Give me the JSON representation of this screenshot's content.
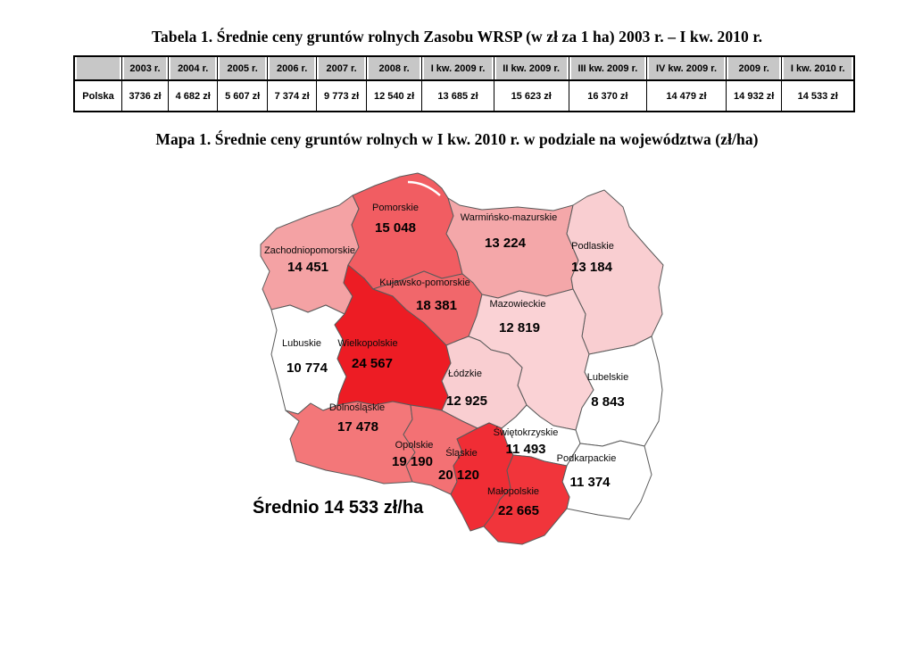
{
  "page_background": "#ffffff",
  "table_section": {
    "title": "Tabela 1. Średnie ceny gruntów rolnych Zasobu WRSP (w zł za 1 ha) 2003 r. – I kw. 2010 r.",
    "table": {
      "corner_label": "",
      "row_header": "Polska",
      "header_bg": "#c7c7c7",
      "columns": [
        "2003 r.",
        "2004 r.",
        "2005 r.",
        "2006 r.",
        "2007 r.",
        "2008 r.",
        "I kw. 2009 r.",
        "II kw. 2009 r.",
        "III kw. 2009 r.",
        "IV kw. 2009 r.",
        "2009 r.",
        "I kw. 2010 r."
      ],
      "values": [
        "3736 zł",
        "4 682 zł",
        "5 607 zł",
        "7 374 zł",
        "9 773 zł",
        "12 540 zł",
        "13 685 zł",
        "15 623 zł",
        "16 370 zł",
        "14 479 zł",
        "14 932 zł",
        "14 533 zł"
      ]
    }
  },
  "map_section": {
    "title": "Mapa 1. Średnie ceny gruntów rolnych w I kw. 2010 r. w podziale na województwa (zł/ha)",
    "average_label": "Średnio 14 533 zł/ha",
    "border_color": "#5a5a5a",
    "regions": [
      {
        "id": "zachodniopomorskie",
        "name": "Zachodniopomorskie",
        "value": "14 451",
        "color": "#f4a2a4"
      },
      {
        "id": "pomorskie",
        "name": "Pomorskie",
        "value": "15 048",
        "color": "#f15d62"
      },
      {
        "id": "warminsko",
        "name": "Warmińsko-mazurskie",
        "value": "13 224",
        "color": "#f4a7a9"
      },
      {
        "id": "podlaskie",
        "name": "Podlaskie",
        "value": "13 184",
        "color": "#f9ced1"
      },
      {
        "id": "kujawsko",
        "name": "Kujawsko-pomorskie",
        "value": "18 381",
        "color": "#f1676b"
      },
      {
        "id": "mazowieckie",
        "name": "Mazowieckie",
        "value": "12 819",
        "color": "#fad2d5"
      },
      {
        "id": "lubuskie",
        "name": "Lubuskie",
        "value": "10 774",
        "color": "#ffffff"
      },
      {
        "id": "wielkopolskie",
        "name": "Wielkopolskie",
        "value": "24 567",
        "color": "#ed1c24"
      },
      {
        "id": "lodzkie",
        "name": "Łódzkie",
        "value": "12 925",
        "color": "#f9ced1"
      },
      {
        "id": "lubelskie",
        "name": "Lubelskie",
        "value": "8 843",
        "color": "#ffffff"
      },
      {
        "id": "dolnoslaskie",
        "name": "Dolnośląskie",
        "value": "17 478",
        "color": "#f37779"
      },
      {
        "id": "opolskie",
        "name": "Opolskie",
        "value": "19 190",
        "color": "#f37174"
      },
      {
        "id": "slaskie",
        "name": "Śląskie",
        "value": "20 120",
        "color": "#f02d35"
      },
      {
        "id": "swietokrzyskie",
        "name": "Świętokrzyskie",
        "value": "11 493",
        "color": "#ffffff"
      },
      {
        "id": "podkarpackie",
        "name": "Podkarpackie",
        "value": "11 374",
        "color": "#ffffff"
      },
      {
        "id": "malopolskie",
        "name": "Małopolskie",
        "value": "22 665",
        "color": "#f1353b"
      }
    ]
  },
  "chart_data": [
    {
      "type": "table",
      "title": "Średnie ceny gruntów rolnych Zasobu WRSP (w zł za 1 ha) 2003 r. – I kw. 2010 r.",
      "categories": [
        "2003 r.",
        "2004 r.",
        "2005 r.",
        "2006 r.",
        "2007 r.",
        "2008 r.",
        "I kw. 2009 r.",
        "II kw. 2009 r.",
        "III kw. 2009 r.",
        "IV kw. 2009 r.",
        "2009 r.",
        "I kw. 2010 r."
      ],
      "series": [
        {
          "name": "Polska",
          "values": [
            3736,
            4682,
            5607,
            7374,
            9773,
            12540,
            13685,
            15623,
            16370,
            14479,
            14932,
            14533
          ]
        }
      ],
      "unit": "zł"
    },
    {
      "type": "heatmap",
      "title": "Średnie ceny gruntów rolnych w I kw. 2010 r. w podziale na województwa (zł/ha)",
      "categories": [
        "Zachodniopomorskie",
        "Pomorskie",
        "Warmińsko-mazurskie",
        "Podlaskie",
        "Kujawsko-pomorskie",
        "Mazowieckie",
        "Lubuskie",
        "Wielkopolskie",
        "Łódzkie",
        "Lubelskie",
        "Dolnośląskie",
        "Opolskie",
        "Śląskie",
        "Świętokrzyskie",
        "Podkarpackie",
        "Małopolskie"
      ],
      "values": [
        14451,
        15048,
        13224,
        13184,
        18381,
        12819,
        10774,
        24567,
        12925,
        8843,
        17478,
        19190,
        20120,
        11493,
        11374,
        22665
      ],
      "annotation": "Średnio 14 533 zł/ha",
      "unit": "zł/ha",
      "legend_position": "none",
      "grid": false
    }
  ]
}
